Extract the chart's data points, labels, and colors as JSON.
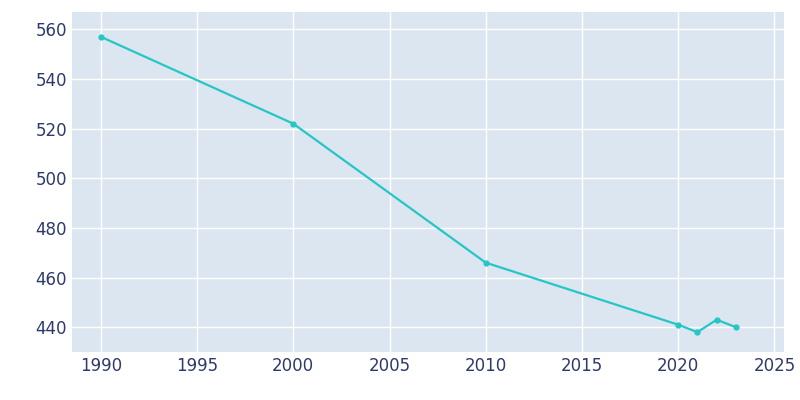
{
  "years": [
    1990,
    2000,
    2010,
    2020,
    2021,
    2022,
    2023
  ],
  "population": [
    557,
    522,
    466,
    441,
    438,
    443,
    440
  ],
  "line_color": "#26C6C6",
  "fig_bg_color": "#ffffff",
  "plot_bg_color": "#dce6f0",
  "grid_color": "#ffffff",
  "tick_color": "#2d3a6b",
  "xlim": [
    1988.5,
    2025.5
  ],
  "ylim": [
    430,
    567
  ],
  "xticks": [
    1990,
    1995,
    2000,
    2005,
    2010,
    2015,
    2020,
    2025
  ],
  "yticks": [
    440,
    460,
    480,
    500,
    520,
    540,
    560
  ],
  "linewidth": 1.6,
  "marker": "o",
  "markersize": 3.5,
  "tick_fontsize": 12
}
